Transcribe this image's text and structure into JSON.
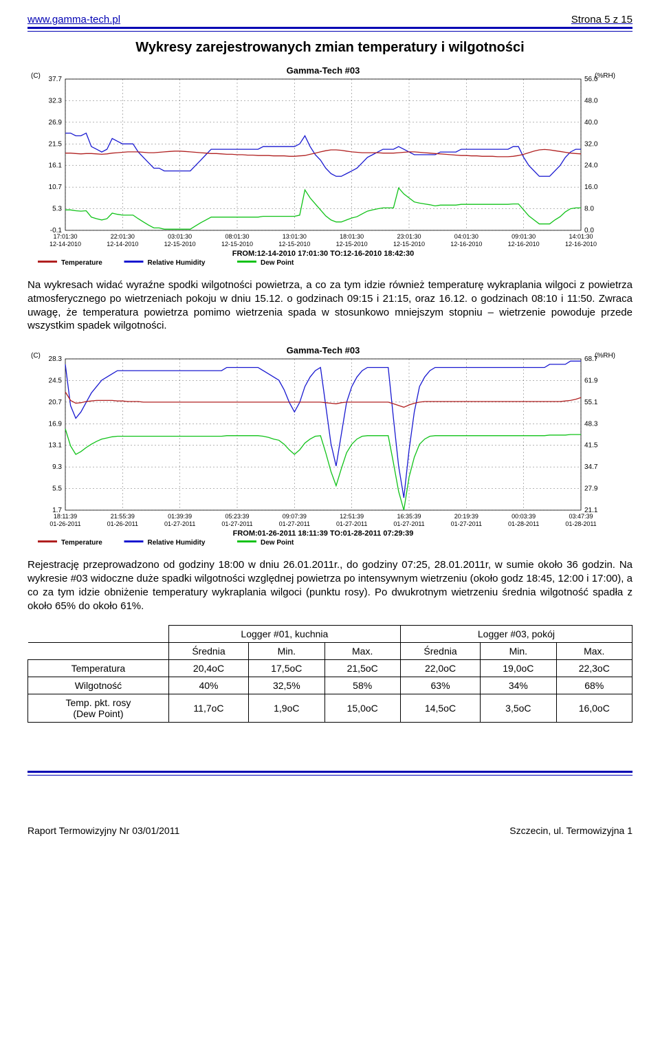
{
  "header": {
    "url": "www.gamma-tech.pl",
    "page": "Strona 5 z 15"
  },
  "title": "Wykresy zarejestrowanych zmian temperatury i wilgotności",
  "chart1": {
    "title": "Gamma-Tech #03",
    "bg": "#ffffff",
    "grid": "#e0e0e0",
    "axis_color": "#000000",
    "font_size": 10,
    "y1_label": "(C)",
    "y2_label": "(%RH)",
    "y1_ticks": [
      "37.7",
      "32.3",
      "26.9",
      "21.5",
      "16.1",
      "10.7",
      "5.3",
      "-0.1"
    ],
    "y1_min": -0.1,
    "y1_max": 37.7,
    "y2_ticks": [
      "56.0",
      "48.0",
      "40.0",
      "32.0",
      "24.0",
      "16.0",
      "8.0",
      "0.0"
    ],
    "y2_min": 0.0,
    "y2_max": 56.0,
    "x_labels_top": [
      "17:01:30",
      "22:01:30",
      "03:01:30",
      "08:01:30",
      "13:01:30",
      "18:01:30",
      "23:01:30",
      "04:01:30",
      "09:01:30",
      "14:01:30"
    ],
    "x_labels_bot": [
      "12-14-2010",
      "12-14-2010",
      "12-15-2010",
      "12-15-2010",
      "12-15-2010",
      "12-15-2010",
      "12-15-2010",
      "12-16-2010",
      "12-16-2010",
      "12-16-2010"
    ],
    "from_to": "FROM:12-14-2010 17:01:30   TO:12-16-2010 18:42:30",
    "series": {
      "temperature": {
        "color": "#b02020",
        "width": 1.3
      },
      "humidity": {
        "color": "#1818d0",
        "width": 1.3
      },
      "dewpoint": {
        "color": "#10c218",
        "width": 1.3
      }
    },
    "legend": [
      "Temperature",
      "Relative Humidity",
      "Dew Point"
    ],
    "temp_pts": [
      19.2,
      19.2,
      19.1,
      19.0,
      19.1,
      19.1,
      19.0,
      18.9,
      19.0,
      19.2,
      19.3,
      19.4,
      19.5,
      19.5,
      19.5,
      19.4,
      19.3,
      19.3,
      19.4,
      19.5,
      19.6,
      19.7,
      19.7,
      19.6,
      19.5,
      19.4,
      19.3,
      19.2,
      19.1,
      19.1,
      19.0,
      18.9,
      18.9,
      18.8,
      18.8,
      18.7,
      18.7,
      18.6,
      18.6,
      18.6,
      18.5,
      18.5,
      18.5,
      18.4,
      18.4,
      18.5,
      18.6,
      18.9,
      19.2,
      19.5,
      19.8,
      20.0,
      20.0,
      19.9,
      19.7,
      19.5,
      19.4,
      19.3,
      19.3,
      19.3,
      19.3,
      19.2,
      19.2,
      19.2,
      19.3,
      19.4,
      19.5,
      19.5,
      19.4,
      19.3,
      19.2,
      19.1,
      19.0,
      18.9,
      18.8,
      18.7,
      18.6,
      18.6,
      18.5,
      18.5,
      18.4,
      18.4,
      18.4,
      18.3,
      18.3,
      18.3,
      18.4,
      18.6,
      18.9,
      19.3,
      19.7,
      20.0,
      20.1,
      20.0,
      19.8,
      19.6,
      19.4,
      19.2,
      19.1,
      19.0
    ],
    "rh_pts": [
      36,
      36,
      35,
      35,
      36,
      31,
      30,
      29,
      30,
      34,
      33,
      32,
      32,
      32,
      29,
      27,
      25,
      23,
      23,
      22,
      22,
      22,
      22,
      22,
      22,
      24,
      26,
      28,
      30,
      30,
      30,
      30,
      30,
      30,
      30,
      30,
      30,
      30,
      31,
      31,
      31,
      31,
      31,
      31,
      31,
      32,
      35,
      31,
      28,
      26,
      23,
      21,
      20,
      20,
      21,
      22,
      23,
      25,
      27,
      28,
      29,
      30,
      30,
      30,
      31,
      30,
      29,
      28,
      28,
      28,
      28,
      28,
      29,
      29,
      29,
      29,
      30,
      30,
      30,
      30,
      30,
      30,
      30,
      30,
      30,
      30,
      31,
      31,
      27,
      24,
      22,
      20,
      20,
      20,
      22,
      24,
      27,
      29,
      30,
      30
    ],
    "dew_pts": [
      5.0,
      5.0,
      4.8,
      4.7,
      4.8,
      3.2,
      2.8,
      2.5,
      2.8,
      4.2,
      3.9,
      3.7,
      3.7,
      3.7,
      2.8,
      2.0,
      1.2,
      0.5,
      0.5,
      0.2,
      0.2,
      0.2,
      0.2,
      0.2,
      0.2,
      1.0,
      1.8,
      2.5,
      3.2,
      3.2,
      3.2,
      3.2,
      3.2,
      3.2,
      3.2,
      3.2,
      3.2,
      3.2,
      3.4,
      3.4,
      3.4,
      3.4,
      3.4,
      3.4,
      3.4,
      3.7,
      10.0,
      8.0,
      6.5,
      5.0,
      3.5,
      2.5,
      2.0,
      2.0,
      2.5,
      3.0,
      3.3,
      4.0,
      4.7,
      5.0,
      5.3,
      5.5,
      5.5,
      5.5,
      10.5,
      9.0,
      8.0,
      7.0,
      6.7,
      6.5,
      6.3,
      6.0,
      6.2,
      6.2,
      6.2,
      6.2,
      6.4,
      6.4,
      6.4,
      6.4,
      6.4,
      6.4,
      6.4,
      6.4,
      6.4,
      6.4,
      6.5,
      6.5,
      5.0,
      3.5,
      2.5,
      1.5,
      1.5,
      1.5,
      2.5,
      3.3,
      4.5,
      5.3,
      5.5,
      5.5
    ]
  },
  "para1_parts": [
    "Na wykresach widać wyraźne spodki wilgotności powietrza, a co za tym idzie również temperaturę wykraplania wilgoci z powietrza atmosferycznego po wietrzeniach pokoju w dniu 15.12. o godzinach 09:15 i 21:15, oraz 16.12. o godzinach 08:10 i 11:50. Zwraca uwagę, że temperatura powietrza pomimo wietrzenia spada w stosunkowo mniejszym stopniu – wietrzenie powoduje przede wszystkim spadek wilgotności."
  ],
  "chart2": {
    "title": "Gamma-Tech #03",
    "bg": "#ffffff",
    "grid": "#e0e0e0",
    "axis_color": "#000000",
    "font_size": 10,
    "y1_label": "(C)",
    "y2_label": "(%RH)",
    "y1_ticks": [
      "28.3",
      "24.5",
      "20.7",
      "16.9",
      "13.1",
      "9.3",
      "5.5",
      "1.7"
    ],
    "y1_min": 1.7,
    "y1_max": 28.3,
    "y2_ticks": [
      "68.7",
      "61.9",
      "55.1",
      "48.3",
      "41.5",
      "34.7",
      "27.9",
      "21.1"
    ],
    "y2_min": 21.1,
    "y2_max": 68.7,
    "x_labels_top": [
      "18:11:39",
      "21:55:39",
      "01:39:39",
      "05:23:39",
      "09:07:39",
      "12:51:39",
      "16:35:39",
      "20:19:39",
      "00:03:39",
      "03:47:39"
    ],
    "x_labels_bot": [
      "01-26-2011",
      "01-26-2011",
      "01-27-2011",
      "01-27-2011",
      "01-27-2011",
      "01-27-2011",
      "01-27-2011",
      "01-27-2011",
      "01-28-2011",
      "01-28-2011"
    ],
    "from_to": "FROM:01-26-2011 18:11:39   TO:01-28-2011 07:29:39",
    "legend": [
      "Temperature",
      "Relative Humidity",
      "Dew Point"
    ],
    "series": {
      "temperature": {
        "color": "#b02020",
        "width": 1.3
      },
      "humidity": {
        "color": "#1818d0",
        "width": 1.3
      },
      "dewpoint": {
        "color": "#10c218",
        "width": 1.3
      }
    },
    "temp_pts": [
      22.5,
      21.0,
      20.5,
      20.6,
      20.8,
      20.9,
      21.0,
      21.0,
      21.0,
      21.0,
      20.9,
      20.9,
      20.8,
      20.8,
      20.8,
      20.7,
      20.7,
      20.7,
      20.7,
      20.7,
      20.7,
      20.7,
      20.7,
      20.7,
      20.7,
      20.7,
      20.7,
      20.7,
      20.7,
      20.7,
      20.7,
      20.7,
      20.7,
      20.7,
      20.7,
      20.7,
      20.7,
      20.7,
      20.7,
      20.7,
      20.7,
      20.7,
      20.7,
      20.7,
      20.7,
      20.7,
      20.7,
      20.7,
      20.7,
      20.7,
      20.6,
      20.5,
      20.4,
      20.6,
      20.7,
      20.7,
      20.7,
      20.7,
      20.7,
      20.7,
      20.7,
      20.7,
      20.7,
      20.4,
      20.1,
      19.8,
      20.2,
      20.5,
      20.7,
      20.8,
      20.8,
      20.8,
      20.8,
      20.8,
      20.8,
      20.8,
      20.8,
      20.8,
      20.8,
      20.8,
      20.8,
      20.8,
      20.8,
      20.8,
      20.8,
      20.8,
      20.8,
      20.8,
      20.8,
      20.8,
      20.8,
      20.8,
      20.8,
      20.8,
      20.8,
      20.8,
      20.9,
      21.0,
      21.2,
      21.5
    ],
    "rh_pts": [
      67,
      54,
      50,
      52,
      55,
      58,
      60,
      62,
      63,
      64,
      65,
      65,
      65,
      65,
      65,
      65,
      65,
      65,
      65,
      65,
      65,
      65,
      65,
      65,
      65,
      65,
      65,
      65,
      65,
      65,
      65,
      66,
      66,
      66,
      66,
      66,
      66,
      66,
      65,
      64,
      63,
      62,
      59,
      55,
      52,
      55,
      60,
      63,
      65,
      66,
      54,
      42,
      35,
      45,
      55,
      60,
      63,
      65,
      66,
      66,
      66,
      66,
      66,
      50,
      35,
      25,
      40,
      52,
      60,
      63,
      65,
      66,
      66,
      66,
      66,
      66,
      66,
      66,
      66,
      66,
      66,
      66,
      66,
      66,
      66,
      66,
      66,
      66,
      66,
      66,
      66,
      66,
      66,
      67,
      67,
      67,
      67,
      68,
      68,
      68
    ],
    "dew_pts": [
      16.0,
      13.0,
      11.5,
      12.0,
      12.7,
      13.3,
      13.8,
      14.2,
      14.4,
      14.6,
      14.7,
      14.7,
      14.7,
      14.7,
      14.7,
      14.7,
      14.7,
      14.7,
      14.7,
      14.7,
      14.7,
      14.7,
      14.7,
      14.7,
      14.7,
      14.7,
      14.7,
      14.7,
      14.7,
      14.7,
      14.7,
      14.8,
      14.8,
      14.8,
      14.8,
      14.8,
      14.8,
      14.8,
      14.7,
      14.5,
      14.2,
      14.0,
      13.3,
      12.3,
      11.5,
      12.3,
      13.5,
      14.2,
      14.7,
      14.8,
      11.8,
      8.5,
      6.0,
      9.0,
      11.8,
      13.3,
      14.2,
      14.7,
      14.8,
      14.8,
      14.8,
      14.8,
      14.8,
      10.0,
      5.0,
      1.7,
      7.5,
      11.0,
      13.3,
      14.2,
      14.7,
      14.8,
      14.8,
      14.8,
      14.8,
      14.8,
      14.8,
      14.8,
      14.8,
      14.8,
      14.8,
      14.8,
      14.8,
      14.8,
      14.8,
      14.8,
      14.8,
      14.8,
      14.8,
      14.8,
      14.8,
      14.8,
      14.8,
      14.9,
      14.9,
      14.9,
      14.9,
      15.0,
      15.0,
      15.0
    ]
  },
  "para2_parts": [
    "Rejestrację przeprowadzono od godziny 18:00 w dniu 26.01.2011r., do godziny 07:25, 28.01.2011r, w sumie około 36 godzin. Na wykresie #03 widoczne duże spadki wilgotności względnej powietrza po intensywnym wietrzeniu (około godz 18:45, 12:00 i 17:00), a co za tym idzie obniżenie temperatury wykraplania wilgoci (punktu rosy). Po dwukrotnym wietrzeniu średnia wilgotność spadła z około 65% do około 61%."
  ],
  "table": {
    "group1": "Logger #01, kuchnia",
    "group2": "Logger #03, pokój",
    "cols": [
      "Średnia",
      "Min.",
      "Max.",
      "Średnia",
      "Min.",
      "Max."
    ],
    "rows": [
      {
        "label": "Temperatura",
        "cells": [
          "20,4oC",
          "17,5oC",
          "21,5oC",
          "22,0oC",
          "19,0oC",
          "22,3oC"
        ]
      },
      {
        "label": "Wilgotność",
        "cells": [
          "40%",
          "32,5%",
          "58%",
          "63%",
          "34%",
          "68%"
        ]
      },
      {
        "label": "Temp. pkt. rosy\n(Dew Point)",
        "cells": [
          "11,7oC",
          "1,9oC",
          "15,0oC",
          "14,5oC",
          "3,5oC",
          "16,0oC"
        ]
      }
    ]
  },
  "footer": {
    "left": "Raport Termowizyjny Nr 03/01/2011",
    "right": "Szczecin, ul. Termowizyjna 1"
  }
}
